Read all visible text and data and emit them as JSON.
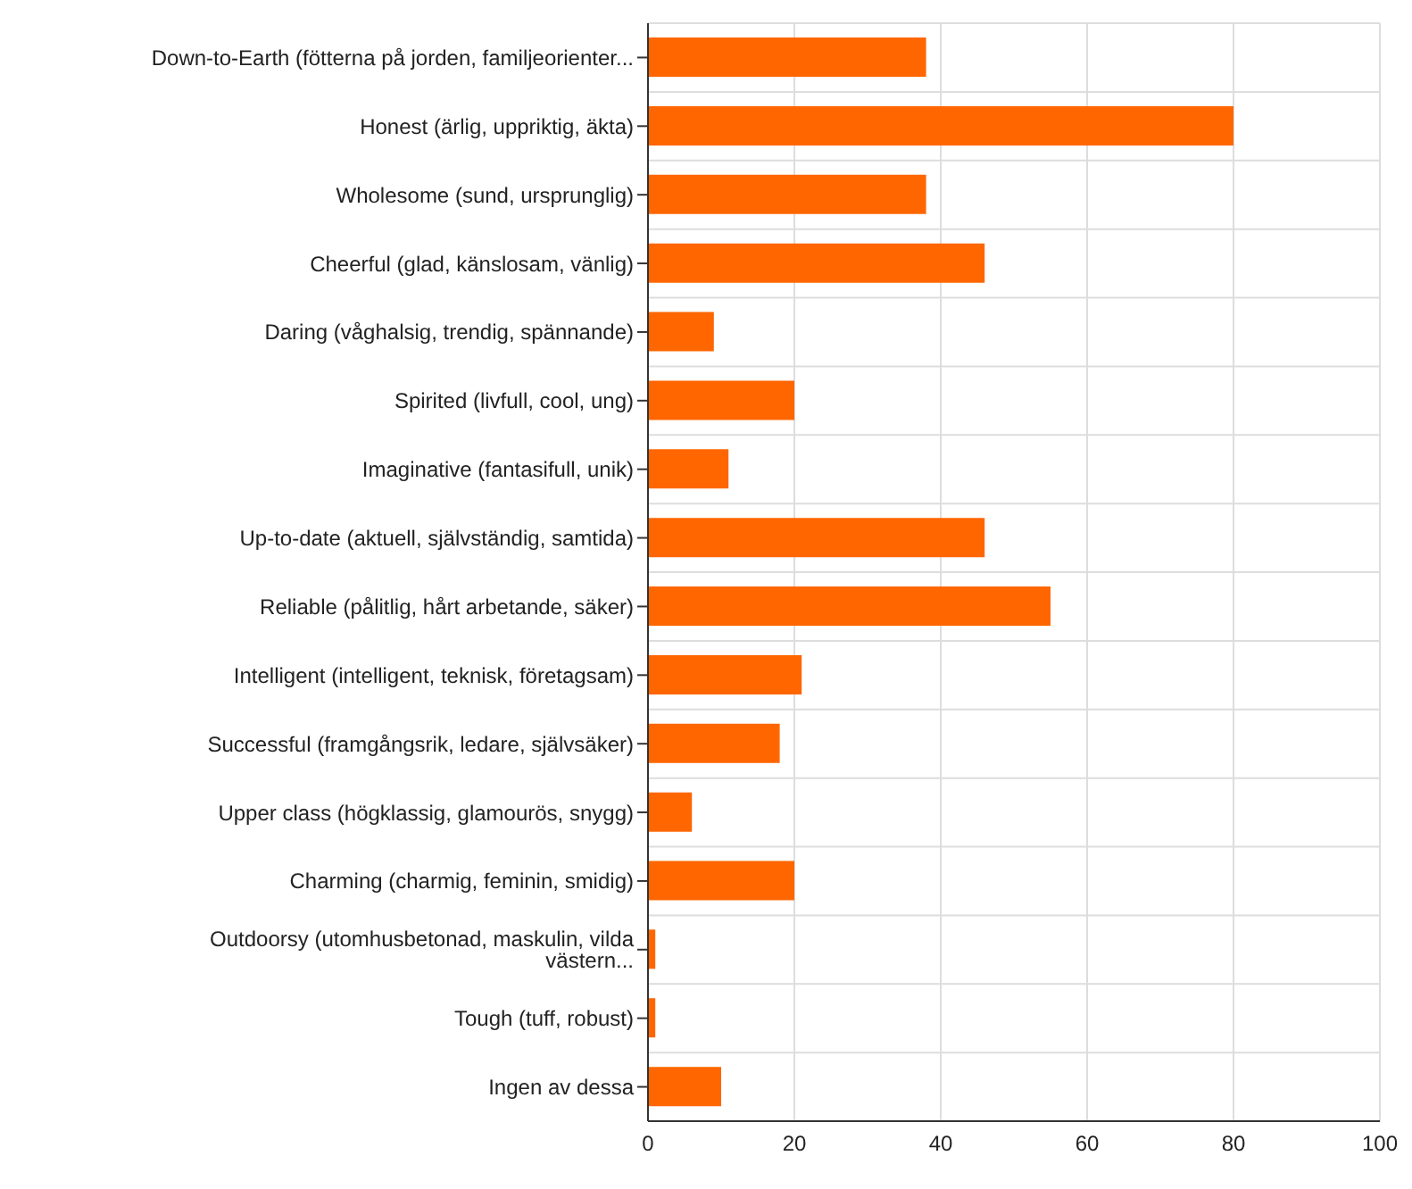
{
  "chart_data": {
    "type": "bar",
    "orientation": "horizontal",
    "categories": [
      "Down-to-Earth (fötterna på jorden, familjeorienter...",
      "Honest (ärlig, uppriktig, äkta)",
      "Wholesome (sund, ursprunglig)",
      "Cheerful (glad, känslosam, vänlig)",
      "Daring (våghalsig, trendig, spännande)",
      "Spirited (livfull, cool, ung)",
      "Imaginative (fantasifull, unik)",
      "Up-to-date (aktuell, självständig, samtida)",
      "Reliable (pålitlig, hårt arbetande, säker)",
      "Intelligent (intelligent, teknisk, företagsam)",
      "Successful (framgångsrik, ledare, självsäker)",
      "Upper class (högklassig, glamourös, snygg)",
      "Charming (charmig, feminin, smidig)",
      "Outdoorsy (utomhusbetonad, maskulin, vilda västern...",
      "Tough (tuff, robust)",
      "Ingen av dessa"
    ],
    "values": [
      38,
      80,
      38,
      46,
      9,
      20,
      11,
      46,
      55,
      21,
      18,
      6,
      20,
      1,
      1,
      10
    ],
    "color": "#ff6600",
    "xlim": [
      0,
      100
    ],
    "xticks": [
      0,
      20,
      40,
      60,
      80,
      100
    ],
    "grid": true
  }
}
